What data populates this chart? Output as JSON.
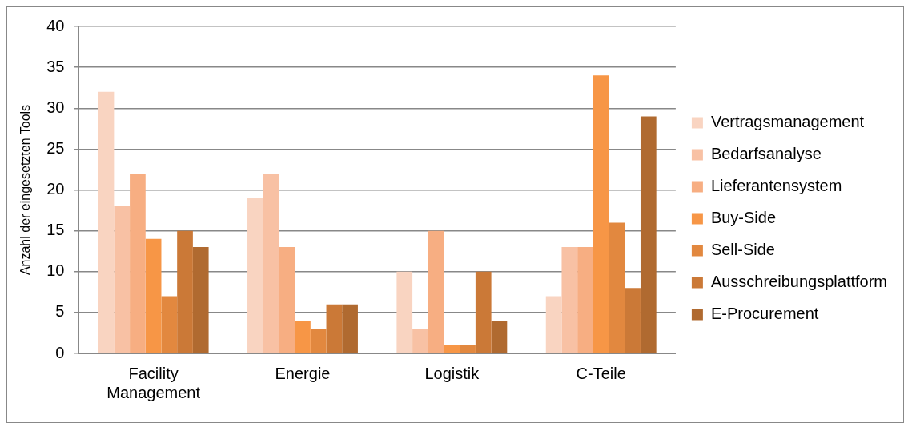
{
  "chart_data": {
    "type": "bar",
    "ylabel": "Anzahl der eingesetzten Tools",
    "categories": [
      "Facility Management",
      "Energie",
      "Logistik",
      "C-Teile"
    ],
    "series": [
      {
        "name": "Vertragsmanagement",
        "color": "#f9d4c1",
        "values": [
          32,
          19,
          10,
          7
        ]
      },
      {
        "name": "Bedarfsanalyse",
        "color": "#f8c1a4",
        "values": [
          18,
          22,
          3,
          13
        ]
      },
      {
        "name": "Lieferantensystem",
        "color": "#f7ae82",
        "values": [
          22,
          13,
          15,
          13
        ]
      },
      {
        "name": "Buy-Side",
        "color": "#f79646",
        "values": [
          14,
          4,
          1,
          34
        ]
      },
      {
        "name": "Sell-Side",
        "color": "#e2883f",
        "values": [
          7,
          3,
          1,
          16
        ]
      },
      {
        "name": "Ausschreibungsplattform",
        "color": "#cb7937",
        "values": [
          15,
          6,
          10,
          8
        ]
      },
      {
        "name": "E-Procurement",
        "color": "#b06a30",
        "values": [
          13,
          6,
          4,
          29
        ]
      }
    ],
    "ylim": [
      0,
      40
    ],
    "yticks": [
      0,
      5,
      10,
      15,
      20,
      25,
      30,
      35,
      40
    ],
    "grid": "y",
    "legend": "right"
  }
}
